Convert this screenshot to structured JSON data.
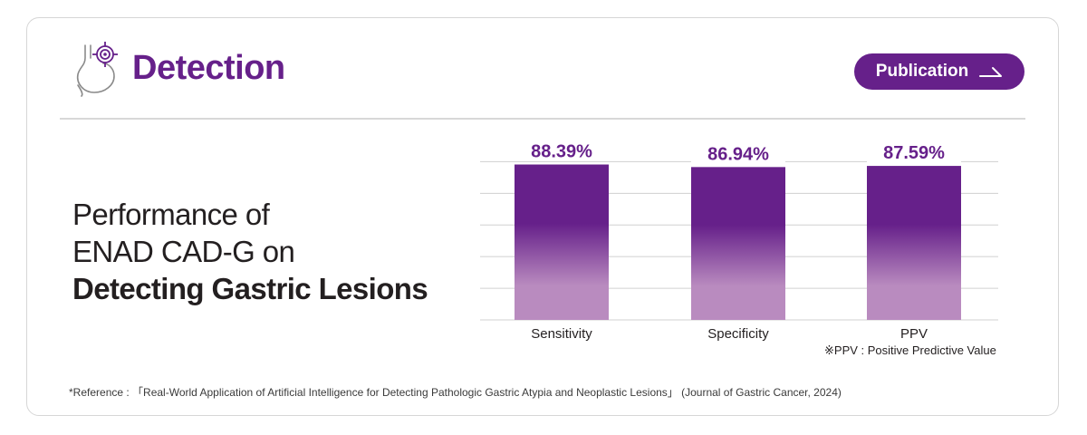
{
  "header": {
    "title": "Detection",
    "publication_button": "Publication"
  },
  "headline": {
    "line1": "Performance of",
    "line2": "ENAD CAD-G on",
    "line3": "Detecting Gastric Lesions"
  },
  "chart_data": {
    "type": "bar",
    "categories": [
      "Sensitivity",
      "Specificity",
      "PPV"
    ],
    "values": [
      88.39,
      86.94,
      87.59
    ],
    "value_labels": [
      "88.39%",
      "86.94%",
      "87.59%"
    ],
    "ylim": [
      0,
      100
    ],
    "grid": true,
    "title": "",
    "xlabel": "",
    "ylabel": "",
    "bar_color_top": "#66208a",
    "bar_color_bottom": "#b98bbf"
  },
  "notes": {
    "ppv": "※PPV : Positive Predictive Value",
    "reference": "*Reference : 「Real-World Application of Artificial Intelligence for Detecting Pathologic Gastric Atypia and Neoplastic Lesions」 (Journal of Gastric Cancer, 2024)"
  },
  "icons": {
    "brand": "stomach-target-icon",
    "publication_arrow": "arrow-right-icon"
  },
  "colors": {
    "accent": "#66208a",
    "text": "#231f20",
    "grid": "#d0d0d0",
    "border": "#d6d6d6"
  }
}
